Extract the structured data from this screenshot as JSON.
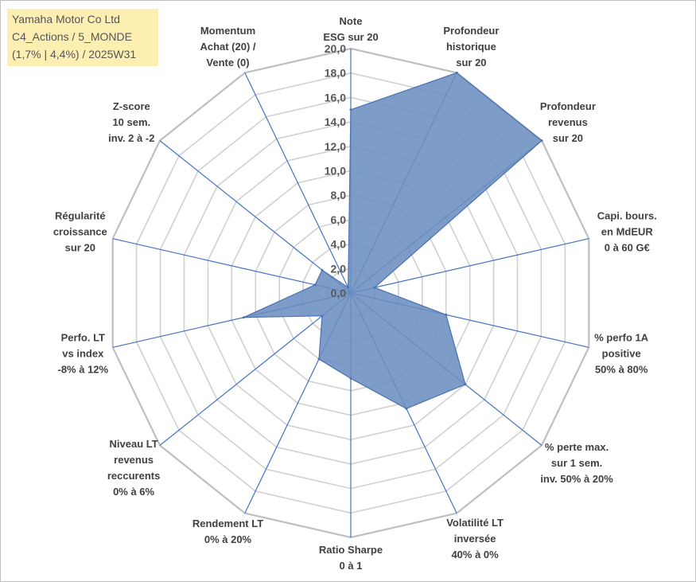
{
  "title_box": {
    "line1": "Yamaha Motor Co Ltd",
    "line2": "C4_Actions / 5_MONDE",
    "line3": "(1,7% | 4,4%) / 2025W31"
  },
  "colors": {
    "fill": "#6b8ebf",
    "stroke": "#4a72b2",
    "spoke": "#4472c4",
    "grid": "#d0d0d0",
    "title_bg": "#fdeeb2"
  },
  "chart_data": {
    "type": "radar",
    "rmin": 0,
    "rmax": 20,
    "tick_step": 2,
    "tick_labels": [
      "0,0",
      "2,0",
      "4,0",
      "6,0",
      "8,0",
      "10,0",
      "12,0",
      "14,0",
      "16,0",
      "18,0",
      "20,0"
    ],
    "axes": [
      {
        "label": [
          "Note",
          "ESG sur 20"
        ],
        "value": 15
      },
      {
        "label": [
          "Profondeur",
          "historique",
          "sur 20"
        ],
        "value": 20
      },
      {
        "label": [
          "Profondeur",
          "revenus",
          "sur 20"
        ],
        "value": 20
      },
      {
        "label": [
          "Capi. bours.",
          "en MdEUR",
          "0 à 60 G€"
        ],
        "value": 2
      },
      {
        "label": [
          "% perfo 1A",
          "positive",
          "50% à 80%"
        ],
        "value": 8
      },
      {
        "label": [
          "% perte max.",
          "sur 1 sem.",
          "inv. 50% à 20%"
        ],
        "value": 12
      },
      {
        "label": [
          "Volatilité LT",
          "inversée",
          "40% à 0%"
        ],
        "value": 10.5
      },
      {
        "label": [
          "Ratio Sharpe",
          "0 à 1"
        ],
        "value": 7
      },
      {
        "label": [
          "Rendement LT",
          "0% à 20%"
        ],
        "value": 6
      },
      {
        "label": [
          "Niveau LT",
          "revenus",
          "reccurents",
          "0% à 6%"
        ],
        "value": 3
      },
      {
        "label": [
          "Perfo. LT",
          "vs index",
          "-8% à 12%"
        ],
        "value": 9
      },
      {
        "label": [
          "Régularité",
          "croissance",
          "sur 20"
        ],
        "value": 3
      },
      {
        "label": [
          "Z-score",
          "10 sem.",
          "inv. 2 à -2"
        ],
        "value": 3
      },
      {
        "label": [
          "Momentum",
          "Achat (20) /",
          "Vente (0)"
        ],
        "value": 0.5
      }
    ]
  }
}
